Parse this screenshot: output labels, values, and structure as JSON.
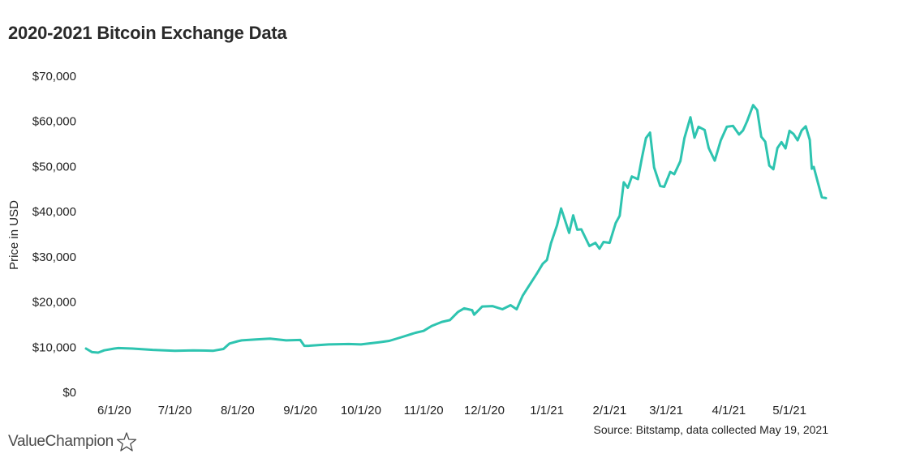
{
  "chart_data": {
    "type": "line",
    "title": "2020-2021 Bitcoin Exchange Data",
    "xlabel": "",
    "ylabel": "Price in USD",
    "ylim": [
      0,
      70000
    ],
    "yticks": [
      0,
      10000,
      20000,
      30000,
      40000,
      50000,
      60000,
      70000
    ],
    "ytick_labels": [
      "$0",
      "$10,000",
      "$20,000",
      "$30,000",
      "$40,000",
      "$50,000",
      "$60,000",
      "$70,000"
    ],
    "xlim": [
      "2020-05-18",
      "2021-05-19"
    ],
    "xtick_dates": [
      "2020-06-01",
      "2020-07-01",
      "2020-08-01",
      "2020-09-01",
      "2020-10-01",
      "2020-11-01",
      "2020-12-01",
      "2021-01-01",
      "2021-02-01",
      "2021-03-01",
      "2021-04-01",
      "2021-05-01"
    ],
    "xtick_labels": [
      "6/1/20",
      "7/1/20",
      "8/1/20",
      "9/1/20",
      "10/1/20",
      "11/1/20",
      "12/1/20",
      "1/1/21",
      "2/1/21",
      "3/1/21",
      "4/1/21",
      "5/1/21"
    ],
    "grid": false,
    "line_color": "#2ec4b0",
    "series": [
      {
        "x": [
          "2020-05-18",
          "2020-05-21",
          "2020-05-24",
          "2020-05-27",
          "2020-06-01",
          "2020-06-03",
          "2020-06-10",
          "2020-06-20",
          "2020-07-01",
          "2020-07-10",
          "2020-07-20",
          "2020-07-25",
          "2020-07-28",
          "2020-08-01",
          "2020-08-03",
          "2020-08-10",
          "2020-08-17",
          "2020-08-25",
          "2020-09-01",
          "2020-09-03",
          "2020-09-05",
          "2020-09-15",
          "2020-09-25",
          "2020-10-01",
          "2020-10-10",
          "2020-10-15",
          "2020-10-21",
          "2020-10-28",
          "2020-11-01",
          "2020-11-05",
          "2020-11-10",
          "2020-11-14",
          "2020-11-18",
          "2020-11-21",
          "2020-11-25",
          "2020-11-26",
          "2020-11-30",
          "2020-12-05",
          "2020-12-10",
          "2020-12-14",
          "2020-12-17",
          "2020-12-20",
          "2020-12-23",
          "2020-12-27",
          "2020-12-30",
          "2021-01-01",
          "2021-01-03",
          "2021-01-06",
          "2021-01-08",
          "2021-01-10",
          "2021-01-12",
          "2021-01-14",
          "2021-01-16",
          "2021-01-18",
          "2021-01-22",
          "2021-01-25",
          "2021-01-27",
          "2021-01-29",
          "2021-02-01",
          "2021-02-04",
          "2021-02-06",
          "2021-02-08",
          "2021-02-10",
          "2021-02-12",
          "2021-02-15",
          "2021-02-17",
          "2021-02-19",
          "2021-02-21",
          "2021-02-23",
          "2021-02-26",
          "2021-02-28",
          "2021-03-03",
          "2021-03-05",
          "2021-03-08",
          "2021-03-10",
          "2021-03-13",
          "2021-03-15",
          "2021-03-17",
          "2021-03-20",
          "2021-03-22",
          "2021-03-25",
          "2021-03-28",
          "2021-03-31",
          "2021-04-03",
          "2021-04-06",
          "2021-04-08",
          "2021-04-10",
          "2021-04-13",
          "2021-04-15",
          "2021-04-17",
          "2021-04-19",
          "2021-04-21",
          "2021-04-23",
          "2021-04-25",
          "2021-04-27",
          "2021-04-29",
          "2021-05-01",
          "2021-05-03",
          "2021-05-05",
          "2021-05-07",
          "2021-05-09",
          "2021-05-11",
          "2021-05-12",
          "2021-05-13",
          "2021-05-15",
          "2021-05-17",
          "2021-05-19"
        ],
        "y": [
          9700,
          8900,
          8800,
          9300,
          9700,
          9800,
          9700,
          9400,
          9200,
          9300,
          9200,
          9600,
          10800,
          11300,
          11500,
          11700,
          11900,
          11500,
          11600,
          10300,
          10300,
          10600,
          10700,
          10600,
          11100,
          11400,
          12200,
          13200,
          13600,
          14700,
          15600,
          16000,
          17800,
          18600,
          18200,
          17200,
          19000,
          19100,
          18400,
          19300,
          18400,
          21400,
          23500,
          26300,
          28500,
          29300,
          33000,
          37000,
          40700,
          38000,
          35300,
          39200,
          36000,
          36100,
          32400,
          33100,
          31800,
          33300,
          33100,
          37500,
          39100,
          46500,
          45300,
          47800,
          47200,
          51900,
          56300,
          57500,
          49800,
          45700,
          45500,
          48800,
          48300,
          51200,
          56300,
          60900,
          56400,
          58800,
          58100,
          54100,
          51300,
          55800,
          58800,
          59000,
          57100,
          58000,
          60000,
          63600,
          62500,
          56600,
          55500,
          50200,
          49400,
          54100,
          55400,
          54000,
          57900,
          57200,
          55800,
          58000,
          58900,
          55900,
          49500,
          49900,
          46500,
          43200,
          43000
        ]
      }
    ],
    "source_note": "Source: Bitstamp, data collected May 19, 2021",
    "brand": "ValueChampion",
    "brand_icon": "star-outline-icon"
  }
}
